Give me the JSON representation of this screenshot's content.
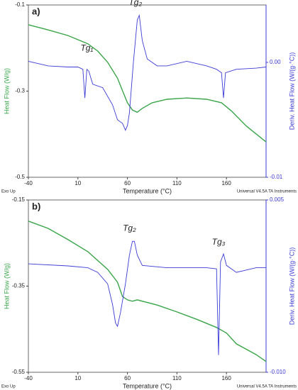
{
  "chart_data": [
    {
      "type": "line",
      "panel_label": "a)",
      "x_label": "Temperature (°C)",
      "y_label": "Heat Flow (W/g)",
      "y2_label": "Deriv. Heat Flow (W/(g·°C))",
      "footer_left": "Exo Up",
      "footer_right": "Universal V4.5A TA Instruments",
      "xlim": [
        -40,
        200
      ],
      "xticks": [
        -40,
        10,
        60,
        110,
        160
      ],
      "ylim": [
        -0.5,
        -0.1
      ],
      "yticks": [
        -0.1,
        -0.3,
        -0.5
      ],
      "y2lim": [
        -0.01,
        0.005
      ],
      "y2ticks": [
        {
          "value": 0,
          "label": "0.00"
        },
        -0.01
      ],
      "annotations": [
        {
          "text": "Tg₁",
          "x": 19,
          "y": 0.0012
        },
        {
          "text": "Tg₂",
          "x": 68,
          "y": 0.0052
        }
      ],
      "series": [
        {
          "name": "Heat Flow",
          "color": "#3aa54a",
          "x": [
            -40,
            -20,
            0,
            20,
            30,
            40,
            50,
            55,
            60,
            65,
            70,
            75,
            85,
            100,
            120,
            140,
            155,
            165,
            180,
            200
          ],
          "values": [
            -0.146,
            -0.158,
            -0.171,
            -0.19,
            -0.207,
            -0.233,
            -0.27,
            -0.299,
            -0.327,
            -0.344,
            -0.349,
            -0.34,
            -0.327,
            -0.319,
            -0.316,
            -0.319,
            -0.327,
            -0.346,
            -0.381,
            -0.418
          ]
        },
        {
          "name": "Deriv. Heat Flow",
          "color": "#3b3bd6",
          "axis": "y2",
          "x": [
            -40,
            -20,
            0,
            10,
            15,
            17,
            19,
            21,
            25,
            35,
            45,
            50,
            55,
            58,
            60,
            62,
            66,
            70,
            72,
            75,
            80,
            90,
            100,
            120,
            140,
            150,
            155,
            157,
            159,
            170,
            190,
            200
          ],
          "values": [
            0.0001,
            -0.0003,
            -0.0004,
            -0.0004,
            -0.0006,
            -0.0031,
            -0.0006,
            -0.00075,
            -0.0019,
            -0.0022,
            -0.0037,
            -0.005,
            -0.0053,
            -0.0059,
            -0.0055,
            -0.0044,
            0,
            0.0037,
            0.0041,
            0.0019,
            0.0003,
            -0.0003,
            -0.0003,
            0.0001,
            -0.0003,
            -0.0006,
            -0.0009,
            -0.0031,
            -0.0009,
            -0.0006,
            -0.0005,
            -0.0004
          ]
        }
      ]
    },
    {
      "type": "line",
      "panel_label": "b)",
      "x_label": "Temperature (°C)",
      "y_label": "Heat Flow (W/g)",
      "y2_label": "Deriv. Heat Flow (W/(g·°C))",
      "footer_left": "Exo Up",
      "footer_right": "Universal V4.5A TA Instruments",
      "xlim": [
        -40,
        200
      ],
      "xticks": [
        -40,
        10,
        60,
        110,
        160
      ],
      "ylim": [
        -0.55,
        -0.15
      ],
      "yticks": [
        -0.15,
        -0.35,
        -0.55
      ],
      "y2lim": [
        -0.01,
        0.005
      ],
      "y2ticks": [
        0.005,
        {
          "value": -0.01,
          "label": "-0.010"
        }
      ],
      "annotations": [
        {
          "text": "Tg₂",
          "x": 62,
          "y": 0.0025
        },
        {
          "text": "Tg₃",
          "x": 152,
          "y": 0.0013
        }
      ],
      "series": [
        {
          "name": "Heat Flow",
          "color": "#3aa54a",
          "x": [
            -40,
            -20,
            0,
            20,
            40,
            50,
            55,
            60,
            65,
            70,
            90,
            110,
            130,
            150,
            160,
            170,
            190,
            200
          ],
          "values": [
            -0.199,
            -0.216,
            -0.242,
            -0.27,
            -0.311,
            -0.341,
            -0.374,
            -0.382,
            -0.385,
            -0.382,
            -0.394,
            -0.41,
            -0.427,
            -0.446,
            -0.459,
            -0.484,
            -0.509,
            -0.525
          ]
        },
        {
          "name": "Deriv. Heat Flow",
          "color": "#3b3bd6",
          "axis": "y2",
          "x": [
            -40,
            0,
            20,
            30,
            40,
            45,
            48,
            50,
            53,
            58,
            62,
            65,
            67,
            70,
            75,
            100,
            140,
            150,
            152,
            154,
            157,
            160,
            170,
            190,
            200
          ],
          "values": [
            -0.00056,
            -0.00074,
            -0.0009,
            -0.0013,
            -0.0023,
            -0.0041,
            -0.0057,
            -0.006,
            -0.0048,
            -0.0023,
            0.0002,
            0.0014,
            0.0014,
            0.0002,
            -0.0007,
            -0.0009,
            -0.0009,
            -0.001,
            -0.0085,
            -0.0004,
            0.0003,
            -0.0007,
            -0.0013,
            -0.0009,
            -0.0009
          ]
        }
      ]
    }
  ]
}
